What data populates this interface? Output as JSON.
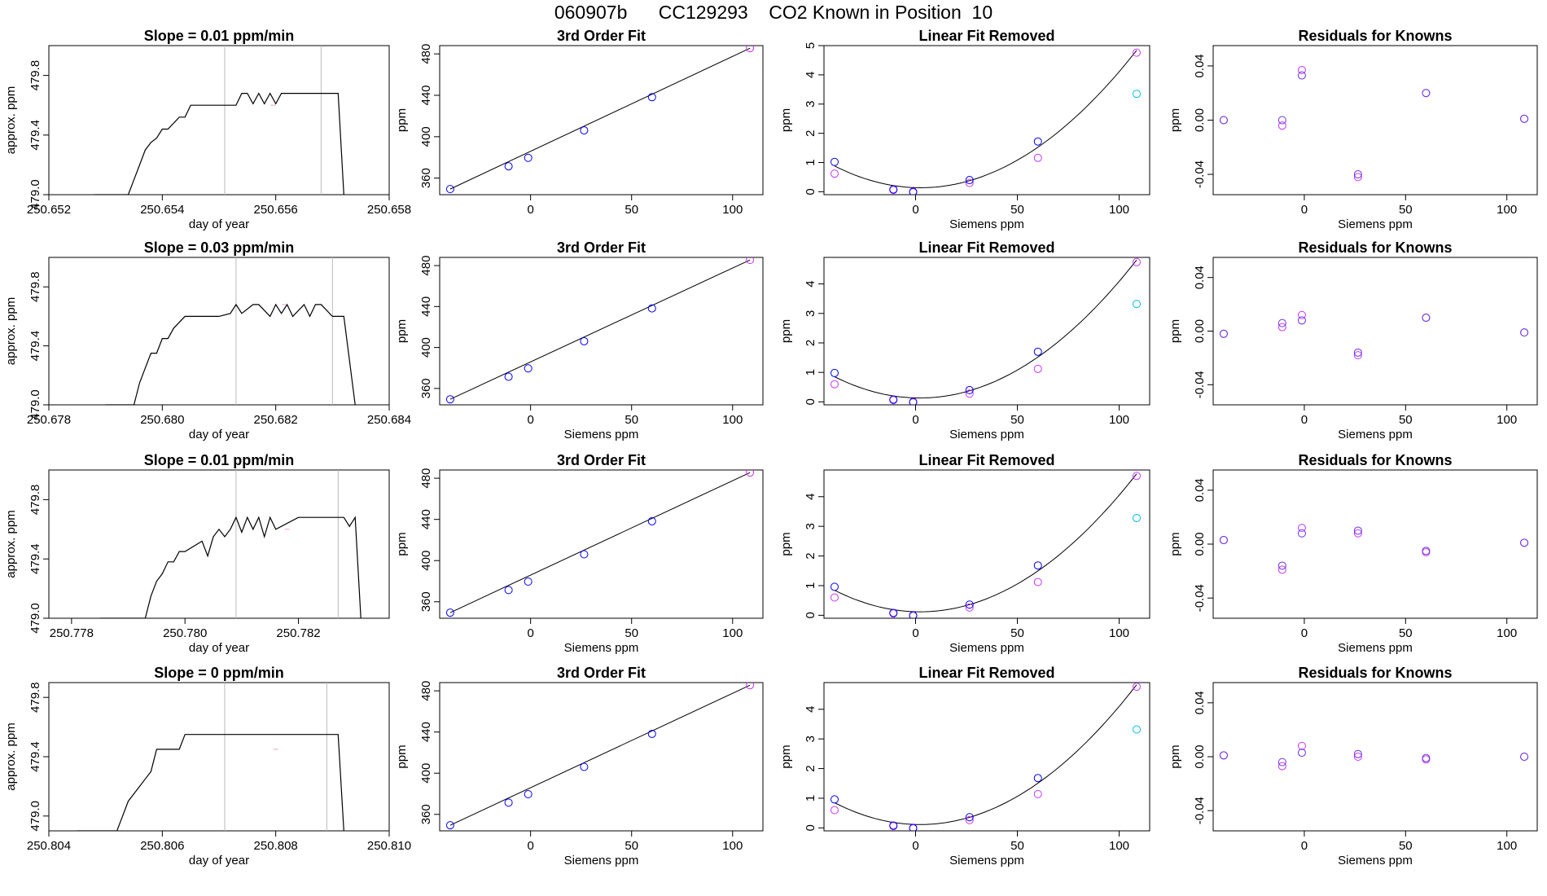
{
  "figure_title": "060907b      CC129293    CO2 Known in Position  10",
  "colors": {
    "sample": "#0000ff",
    "known": "#cc33ff",
    "extra": "#00bbee",
    "gridline": "#bbbbbb",
    "trace": "#000000",
    "flat_marker": "#ff99cc"
  },
  "chart_data": [
    {
      "type": "line",
      "row": 0,
      "title": "Slope =  0.01  ppm/min",
      "xlabel": "day of year",
      "ylabel": "approx. ppm",
      "xlim": [
        250.652,
        250.658
      ],
      "ylim": [
        479.0,
        480.0
      ],
      "xticks": [
        "250.652",
        "250.654",
        "250.656",
        "250.658"
      ],
      "yticks": [
        "479.0",
        "479.4",
        "479.8"
      ],
      "vlines": [
        250.6551,
        250.6568
      ],
      "x": [
        250.6528,
        250.6534,
        250.6535,
        250.6536,
        250.6537,
        250.6538,
        250.6539,
        250.654,
        250.6541,
        250.6543,
        250.6544,
        250.6545,
        250.6546,
        250.655,
        250.6551,
        250.6553,
        250.6554,
        250.6555,
        250.6556,
        250.6557,
        250.6558,
        250.6559,
        250.656,
        250.6561,
        250.6562,
        250.6566,
        250.6568,
        250.657,
        250.6571,
        250.6572
      ],
      "y": [
        479.0,
        479.0,
        479.1,
        479.2,
        479.3,
        479.35,
        479.38,
        479.44,
        479.44,
        479.52,
        479.52,
        479.6,
        479.6,
        479.6,
        479.6,
        479.6,
        479.68,
        479.68,
        479.61,
        479.68,
        479.61,
        479.68,
        479.61,
        479.68,
        479.68,
        479.68,
        479.68,
        479.68,
        479.68,
        479.0
      ]
    },
    {
      "type": "line",
      "row": 1,
      "title": "Slope =  0.03  ppm/min",
      "xlabel": "day of year",
      "ylabel": "approx. ppm",
      "xlim": [
        250.678,
        250.684
      ],
      "ylim": [
        479.0,
        480.0
      ],
      "xticks": [
        "250.678",
        "250.680",
        "250.682",
        "250.684"
      ],
      "yticks": [
        "479.0",
        "479.4",
        "479.8"
      ],
      "vlines": [
        250.6813,
        250.683
      ],
      "x": [
        250.679,
        250.6795,
        250.6796,
        250.6797,
        250.6798,
        250.6799,
        250.68,
        250.6801,
        250.6802,
        250.6804,
        250.681,
        250.6812,
        250.6813,
        250.6814,
        250.6816,
        250.6817,
        250.6819,
        250.682,
        250.6821,
        250.6822,
        250.6823,
        250.6825,
        250.6826,
        250.6827,
        250.6828,
        250.683,
        250.6832,
        250.6834
      ],
      "y": [
        479.0,
        479.0,
        479.15,
        479.25,
        479.35,
        479.35,
        479.45,
        479.45,
        479.52,
        479.6,
        479.6,
        479.62,
        479.68,
        479.62,
        479.68,
        479.68,
        479.6,
        479.68,
        479.62,
        479.68,
        479.6,
        479.68,
        479.6,
        479.68,
        479.68,
        479.6,
        479.6,
        479.0
      ]
    },
    {
      "type": "line",
      "row": 2,
      "title": "Slope =  0.01  ppm/min",
      "xlabel": "day of year",
      "ylabel": "approx. ppm",
      "xlim": [
        250.7776,
        250.7836
      ],
      "ylim": [
        479.0,
        480.0
      ],
      "xticks": [
        "250.778",
        "250.780",
        "250.782"
      ],
      "yticks": [
        "479.0",
        "479.4",
        "479.8"
      ],
      "vlines": [
        250.7809,
        250.7827
      ],
      "x": [
        250.7785,
        250.7793,
        250.7794,
        250.7795,
        250.7796,
        250.7797,
        250.7798,
        250.7799,
        250.78,
        250.7803,
        250.7804,
        250.7805,
        250.7806,
        250.7807,
        250.7808,
        250.7809,
        250.781,
        250.7811,
        250.7812,
        250.7813,
        250.7814,
        250.7815,
        250.7816,
        250.782,
        250.7822,
        250.7828,
        250.7829,
        250.783,
        250.7831
      ],
      "y": [
        479.0,
        479.0,
        479.15,
        479.25,
        479.3,
        479.38,
        479.38,
        479.45,
        479.45,
        479.52,
        479.42,
        479.55,
        479.6,
        479.55,
        479.6,
        479.68,
        479.58,
        479.68,
        479.6,
        479.68,
        479.55,
        479.68,
        479.6,
        479.68,
        479.68,
        479.68,
        479.62,
        479.68,
        479.0
      ]
    },
    {
      "type": "line",
      "row": 3,
      "title": "Slope =  0  ppm/min",
      "xlabel": "day of year",
      "ylabel": "approx. ppm",
      "xlim": [
        250.804,
        250.81
      ],
      "ylim": [
        478.9,
        479.9
      ],
      "xticks": [
        "250.804",
        "250.806",
        "250.808",
        "250.810"
      ],
      "yticks": [
        "479.0",
        "479.4",
        "479.8"
      ],
      "vlines": [
        250.8071,
        250.8089
      ],
      "x": [
        250.8045,
        250.8052,
        250.8053,
        250.8054,
        250.8055,
        250.8056,
        250.8057,
        250.8058,
        250.8059,
        250.8063,
        250.8064,
        250.8068,
        250.807,
        250.8075,
        250.808,
        250.8085,
        250.809,
        250.8091,
        250.8092
      ],
      "y": [
        478.9,
        478.9,
        479.0,
        479.1,
        479.15,
        479.2,
        479.25,
        479.3,
        479.45,
        479.45,
        479.55,
        479.55,
        479.55,
        479.55,
        479.55,
        479.55,
        479.55,
        479.55,
        478.9
      ]
    },
    {
      "type": "scatter",
      "row": 0,
      "title": "3rd Order Fit",
      "xlabel": "",
      "ylabel": "ppm",
      "xlim": [
        -45,
        115
      ],
      "ylim": [
        344,
        488
      ],
      "xticks": [
        "0",
        "50",
        "100"
      ],
      "yticks": [
        "360",
        "400",
        "440",
        "480"
      ],
      "x": [
        -39.8,
        -10.9,
        -1.2,
        26.5,
        60.1,
        108.6
      ],
      "y": [
        349.4,
        371.4,
        379.6,
        406.1,
        438.2,
        485.5
      ]
    },
    {
      "type": "scatter",
      "row": 1,
      "title": "3rd Order Fit",
      "xlabel": "Siemens ppm",
      "ylabel": "ppm",
      "xlim": [
        -45,
        115
      ],
      "ylim": [
        344,
        488
      ],
      "xticks": [
        "0",
        "50",
        "100"
      ],
      "yticks": [
        "360",
        "400",
        "440",
        "480"
      ],
      "x": [
        -39.8,
        -10.9,
        -1.2,
        26.5,
        60.1,
        108.6
      ],
      "y": [
        349.4,
        371.4,
        379.6,
        406.1,
        438.2,
        485.5
      ]
    },
    {
      "type": "scatter",
      "row": 2,
      "title": "3rd Order Fit",
      "xlabel": "Siemens ppm",
      "ylabel": "ppm",
      "xlim": [
        -45,
        115
      ],
      "ylim": [
        344,
        488
      ],
      "xticks": [
        "0",
        "50",
        "100"
      ],
      "yticks": [
        "360",
        "400",
        "440",
        "480"
      ],
      "x": [
        -39.8,
        -10.9,
        -1.2,
        26.5,
        60.1,
        108.6
      ],
      "y": [
        349.4,
        371.4,
        379.6,
        406.1,
        438.2,
        485.5
      ]
    },
    {
      "type": "scatter",
      "row": 3,
      "title": "3rd Order Fit",
      "xlabel": "Siemens ppm",
      "ylabel": "ppm",
      "xlim": [
        -45,
        115
      ],
      "ylim": [
        344,
        488
      ],
      "xticks": [
        "0",
        "50",
        "100"
      ],
      "yticks": [
        "360",
        "400",
        "440",
        "480"
      ],
      "x": [
        -39.8,
        -10.9,
        -1.2,
        26.5,
        60.1,
        108.6
      ],
      "y": [
        349.4,
        371.4,
        379.6,
        406.1,
        438.2,
        485.5
      ]
    },
    {
      "type": "scatter",
      "row": 0,
      "title": "Linear Fit Removed",
      "xlabel": "Siemens ppm",
      "ylabel": "ppm",
      "xlim": [
        -45,
        115
      ],
      "ylim": [
        -0.1,
        5.0
      ],
      "xticks": [
        "0",
        "50",
        "100"
      ],
      "yticks": [
        "0",
        "1",
        "2",
        "3",
        "4",
        "5"
      ],
      "x": [
        -39.8,
        -10.9,
        -1.2,
        26.5,
        60.1,
        108.6
      ],
      "blue": [
        1.02,
        0.08,
        0.0,
        0.4,
        1.72,
        4.76
      ],
      "magenta": [
        0.62,
        0.06,
        -0.02,
        0.3,
        1.16,
        4.76
      ],
      "cyan": [
        null,
        null,
        null,
        null,
        null,
        3.35
      ]
    },
    {
      "type": "scatter",
      "row": 1,
      "title": "Linear Fit Removed",
      "xlabel": "Siemens ppm",
      "ylabel": "ppm",
      "xlim": [
        -45,
        115
      ],
      "ylim": [
        -0.1,
        4.9
      ],
      "xticks": [
        "0",
        "50",
        "100"
      ],
      "yticks": [
        "0",
        "1",
        "2",
        "3",
        "4"
      ],
      "x": [
        -39.8,
        -10.9,
        -1.2,
        26.5,
        60.1,
        108.6
      ],
      "blue": [
        0.98,
        0.08,
        0.0,
        0.4,
        1.7,
        4.74
      ],
      "magenta": [
        0.6,
        0.06,
        -0.02,
        0.28,
        1.12,
        4.74
      ],
      "cyan": [
        null,
        null,
        null,
        null,
        null,
        3.32
      ]
    },
    {
      "type": "scatter",
      "row": 2,
      "title": "Linear Fit Removed",
      "xlabel": "Siemens ppm",
      "ylabel": "ppm",
      "xlim": [
        -45,
        115
      ],
      "ylim": [
        -0.1,
        4.9
      ],
      "xticks": [
        "0",
        "50",
        "100"
      ],
      "yticks": [
        "0",
        "1",
        "2",
        "3",
        "4"
      ],
      "x": [
        -39.8,
        -10.9,
        -1.2,
        26.5,
        60.1,
        108.6
      ],
      "blue": [
        0.96,
        0.08,
        0.0,
        0.36,
        1.68,
        4.7
      ],
      "magenta": [
        0.6,
        0.06,
        -0.02,
        0.26,
        1.12,
        4.7
      ],
      "cyan": [
        null,
        null,
        null,
        null,
        null,
        3.28
      ]
    },
    {
      "type": "scatter",
      "row": 3,
      "title": "Linear Fit Removed",
      "xlabel": "Siemens ppm",
      "ylabel": "ppm",
      "xlim": [
        -45,
        115
      ],
      "ylim": [
        -0.1,
        4.9
      ],
      "xticks": [
        "0",
        "50",
        "100"
      ],
      "yticks": [
        "0",
        "1",
        "2",
        "3",
        "4"
      ],
      "x": [
        -39.8,
        -10.9,
        -1.2,
        26.5,
        60.1,
        108.6
      ],
      "blue": [
        0.96,
        0.08,
        0.0,
        0.36,
        1.68,
        4.76
      ],
      "magenta": [
        0.6,
        0.06,
        -0.02,
        0.26,
        1.14,
        4.76
      ],
      "cyan": [
        null,
        null,
        null,
        null,
        null,
        3.32
      ]
    },
    {
      "type": "scatter",
      "row": 0,
      "title": "Residuals for Knowns",
      "xlabel": "Siemens ppm",
      "ylabel": "ppm",
      "xlim": [
        -45,
        115
      ],
      "ylim": [
        -0.055,
        0.055
      ],
      "xticks": [
        "0",
        "50",
        "100"
      ],
      "yticks": [
        "-0.04",
        "0.00",
        "0.04"
      ],
      "x": [
        -39.8,
        -10.9,
        -1.2,
        26.5,
        60.1,
        108.6
      ],
      "blue": [
        0.0,
        0.0,
        0.033,
        -0.04,
        0.02,
        0.001
      ],
      "magenta": [
        0.0,
        -0.004,
        0.037,
        -0.042,
        0.02,
        0.001
      ]
    },
    {
      "type": "scatter",
      "row": 1,
      "title": "Residuals for Knowns",
      "xlabel": "Siemens ppm",
      "ylabel": "ppm",
      "xlim": [
        -45,
        115
      ],
      "ylim": [
        -0.055,
        0.055
      ],
      "xticks": [
        "0",
        "50",
        "100"
      ],
      "yticks": [
        "-0.04",
        "0.00",
        "0.04"
      ],
      "x": [
        -39.8,
        -10.9,
        -1.2,
        26.5,
        60.1,
        108.6
      ],
      "blue": [
        -0.002,
        0.006,
        0.008,
        -0.016,
        0.01,
        -0.001
      ],
      "magenta": [
        -0.002,
        0.003,
        0.012,
        -0.018,
        0.01,
        -0.001
      ]
    },
    {
      "type": "scatter",
      "row": 2,
      "title": "Residuals for Knowns",
      "xlabel": "Siemens ppm",
      "ylabel": "ppm",
      "xlim": [
        -45,
        115
      ],
      "ylim": [
        -0.055,
        0.055
      ],
      "xticks": [
        "0",
        "50",
        "100"
      ],
      "yticks": [
        "-0.04",
        "0.00",
        "0.04"
      ],
      "x": [
        -39.8,
        -10.9,
        -1.2,
        26.5,
        60.1,
        108.6
      ],
      "blue": [
        0.003,
        -0.016,
        0.008,
        0.01,
        -0.005,
        0.001
      ],
      "magenta": [
        0.003,
        -0.019,
        0.012,
        0.008,
        -0.006,
        0.001
      ]
    },
    {
      "type": "scatter",
      "row": 3,
      "title": "Residuals for Knowns",
      "xlabel": "Siemens ppm",
      "ylabel": "ppm",
      "xlim": [
        -45,
        115
      ],
      "ylim": [
        -0.055,
        0.055
      ],
      "xticks": [
        "0",
        "50",
        "100"
      ],
      "yticks": [
        "-0.04",
        "0.00",
        "0.04"
      ],
      "x": [
        -39.8,
        -10.9,
        -1.2,
        26.5,
        60.1,
        108.6
      ],
      "blue": [
        0.001,
        -0.004,
        0.003,
        0.002,
        -0.001,
        0.0
      ],
      "magenta": [
        0.001,
        -0.007,
        0.008,
        0.0,
        -0.002,
        0.0
      ]
    }
  ]
}
